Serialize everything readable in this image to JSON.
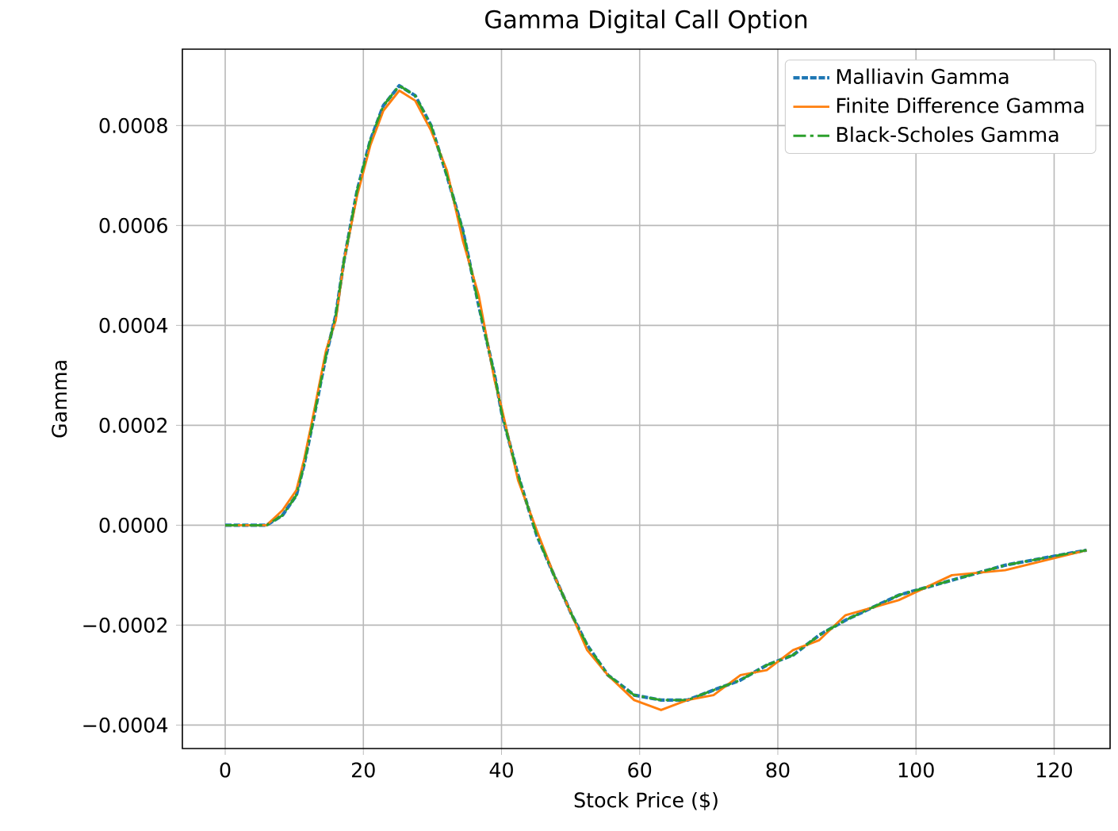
{
  "chart_data": {
    "type": "line",
    "title": "Gamma Digital Call Option",
    "xlabel": "Stock Price ($)",
    "ylabel": "Gamma",
    "xlim": [
      -6.2,
      128.1
    ],
    "ylim": [
      -0.000447,
      0.000953
    ],
    "xticks": [
      0,
      20,
      40,
      60,
      80,
      100,
      120
    ],
    "yticks": [
      {
        "value": -0.0004,
        "label": "−0.0004"
      },
      {
        "value": -0.0002,
        "label": "−0.0002"
      },
      {
        "value": 0,
        "label": "0.0000"
      },
      0.0002,
      0.0004,
      0.0006,
      0.0008
    ],
    "grid": true,
    "legend": "top right",
    "x": [
      0,
      6.0,
      8.3,
      10.3,
      11.4,
      12.6,
      14.6,
      16.0,
      17.2,
      19.1,
      21.0,
      22.9,
      25.2,
      27.5,
      29.8,
      32.1,
      34.4,
      36.7,
      39.0,
      40.1,
      42.4,
      45.1,
      47.6,
      50.2,
      52.4,
      55.4,
      59.2,
      63.1,
      66.9,
      70.7,
      74.6,
      78.4,
      82.2,
      86.0,
      89.8,
      97.5,
      105.2,
      112.9,
      124.7
    ],
    "series": [
      {
        "name": "Malliavin Gamma",
        "color": "#1f77b4",
        "line_style": "dashed",
        "values": [
          0,
          0,
          2e-05,
          6e-05,
          0.00012,
          0.0002,
          0.00034,
          0.00042,
          0.00053,
          0.00067,
          0.00077,
          0.00084,
          0.00088,
          0.00086,
          0.0008,
          0.0007,
          0.00059,
          0.00044,
          0.0003,
          0.00022,
          0.0001,
          -2e-05,
          -0.0001,
          -0.00018,
          -0.00024,
          -0.0003,
          -0.00034,
          -0.00035,
          -0.00035,
          -0.00033,
          -0.00031,
          -0.00028,
          -0.00026,
          -0.00022,
          -0.00019,
          -0.00014,
          -0.00011,
          -8e-05,
          -5e-05
        ]
      },
      {
        "name": "Finite Difference Gamma",
        "color": "#ff7f0e",
        "line_style": "solid",
        "values": [
          0,
          0,
          3e-05,
          7e-05,
          0.00013,
          0.00021,
          0.00035,
          0.00041,
          0.00053,
          0.00066,
          0.00076,
          0.00083,
          0.00087,
          0.00085,
          0.00079,
          0.00071,
          0.00057,
          0.00046,
          0.00029,
          0.00023,
          9e-05,
          -1e-05,
          -0.0001,
          -0.00018,
          -0.00025,
          -0.0003,
          -0.00035,
          -0.00037,
          -0.00035,
          -0.00034,
          -0.0003,
          -0.00029,
          -0.00025,
          -0.00023,
          -0.00018,
          -0.00015,
          -0.0001,
          -9e-05,
          -5e-05
        ]
      },
      {
        "name": "Black-Scholes Gamma",
        "color": "#2ca02c",
        "line_style": "dashdot",
        "values": [
          0,
          0,
          2e-05,
          6e-05,
          0.00012,
          0.0002,
          0.00034,
          0.00042,
          0.00053,
          0.00067,
          0.00077,
          0.00084,
          0.00088,
          0.00086,
          0.0008,
          0.0007,
          0.00059,
          0.00044,
          0.0003,
          0.00022,
          0.0001,
          -2e-05,
          -0.0001,
          -0.00018,
          -0.00024,
          -0.0003,
          -0.00034,
          -0.00035,
          -0.00035,
          -0.00033,
          -0.00031,
          -0.00028,
          -0.00026,
          -0.00022,
          -0.00019,
          -0.00014,
          -0.00011,
          -8e-05,
          -5e-05
        ]
      }
    ]
  }
}
